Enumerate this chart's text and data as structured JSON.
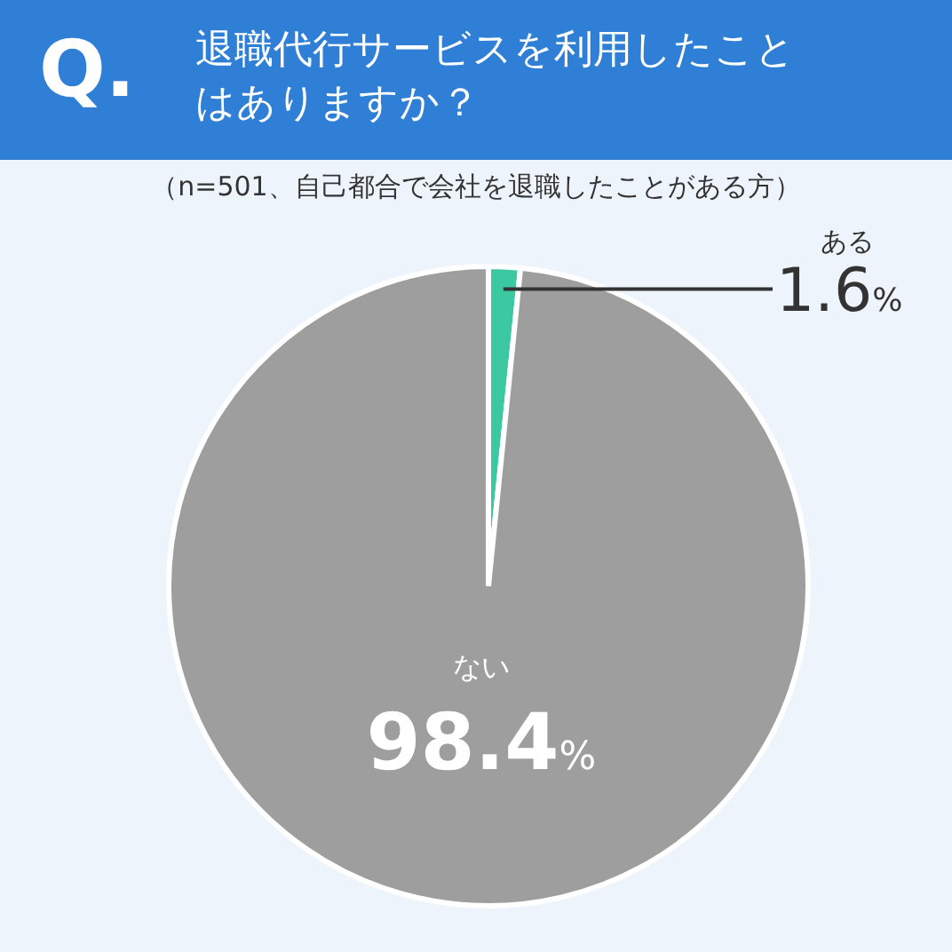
{
  "chart_data": {
    "type": "pie",
    "title": "退職代行サービスを利用したことはありますか？",
    "subtitle": "（n=501、自己都合で会社を退職したことがある方）",
    "annotations": [
      "Q."
    ],
    "categories": [
      "ある",
      "ない"
    ],
    "values": [
      1.6,
      98.4
    ],
    "colors": [
      "#3cc8a0",
      "#9e9e9e"
    ],
    "value_labels": [
      "1.6%",
      "98.4%"
    ],
    "legend": false
  }
}
